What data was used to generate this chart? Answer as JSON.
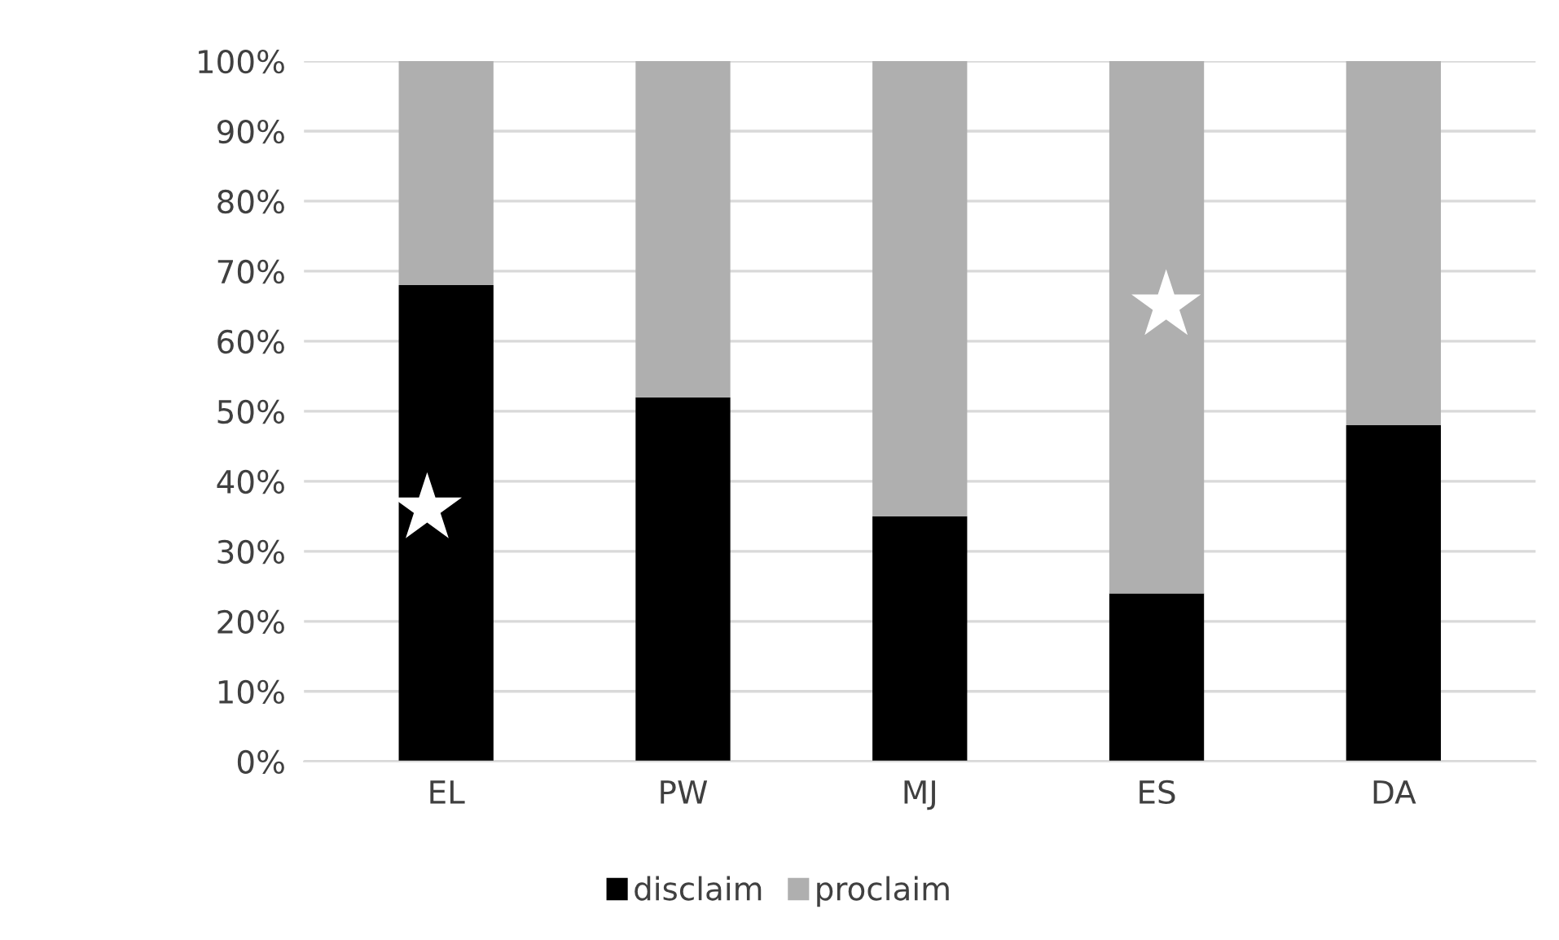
{
  "chart_data": {
    "type": "bar",
    "stacked": true,
    "categories": [
      "EL",
      "PW",
      "MJ",
      "ES",
      "DA"
    ],
    "series": [
      {
        "name": "disclaim",
        "color": "#000000",
        "values": [
          68,
          52,
          35,
          24,
          48
        ]
      },
      {
        "name": "proclaim",
        "color": "#afafaf",
        "values": [
          32,
          48,
          65,
          76,
          52
        ]
      }
    ],
    "ylim": [
      0,
      100
    ],
    "yticks": [
      {
        "value": 0,
        "label": "0%"
      },
      {
        "value": 10,
        "label": "10%"
      },
      {
        "value": 20,
        "label": "20%"
      },
      {
        "value": 30,
        "label": "30%"
      },
      {
        "value": 40,
        "label": "40%"
      },
      {
        "value": 50,
        "label": "50%"
      },
      {
        "value": 60,
        "label": "60%"
      },
      {
        "value": 70,
        "label": "70%"
      },
      {
        "value": 80,
        "label": "80%"
      },
      {
        "value": 90,
        "label": "90%"
      },
      {
        "value": 100,
        "label": "100%"
      }
    ],
    "grid": "y",
    "legend": "bottom",
    "annotations": [
      "★",
      "★"
    ]
  }
}
